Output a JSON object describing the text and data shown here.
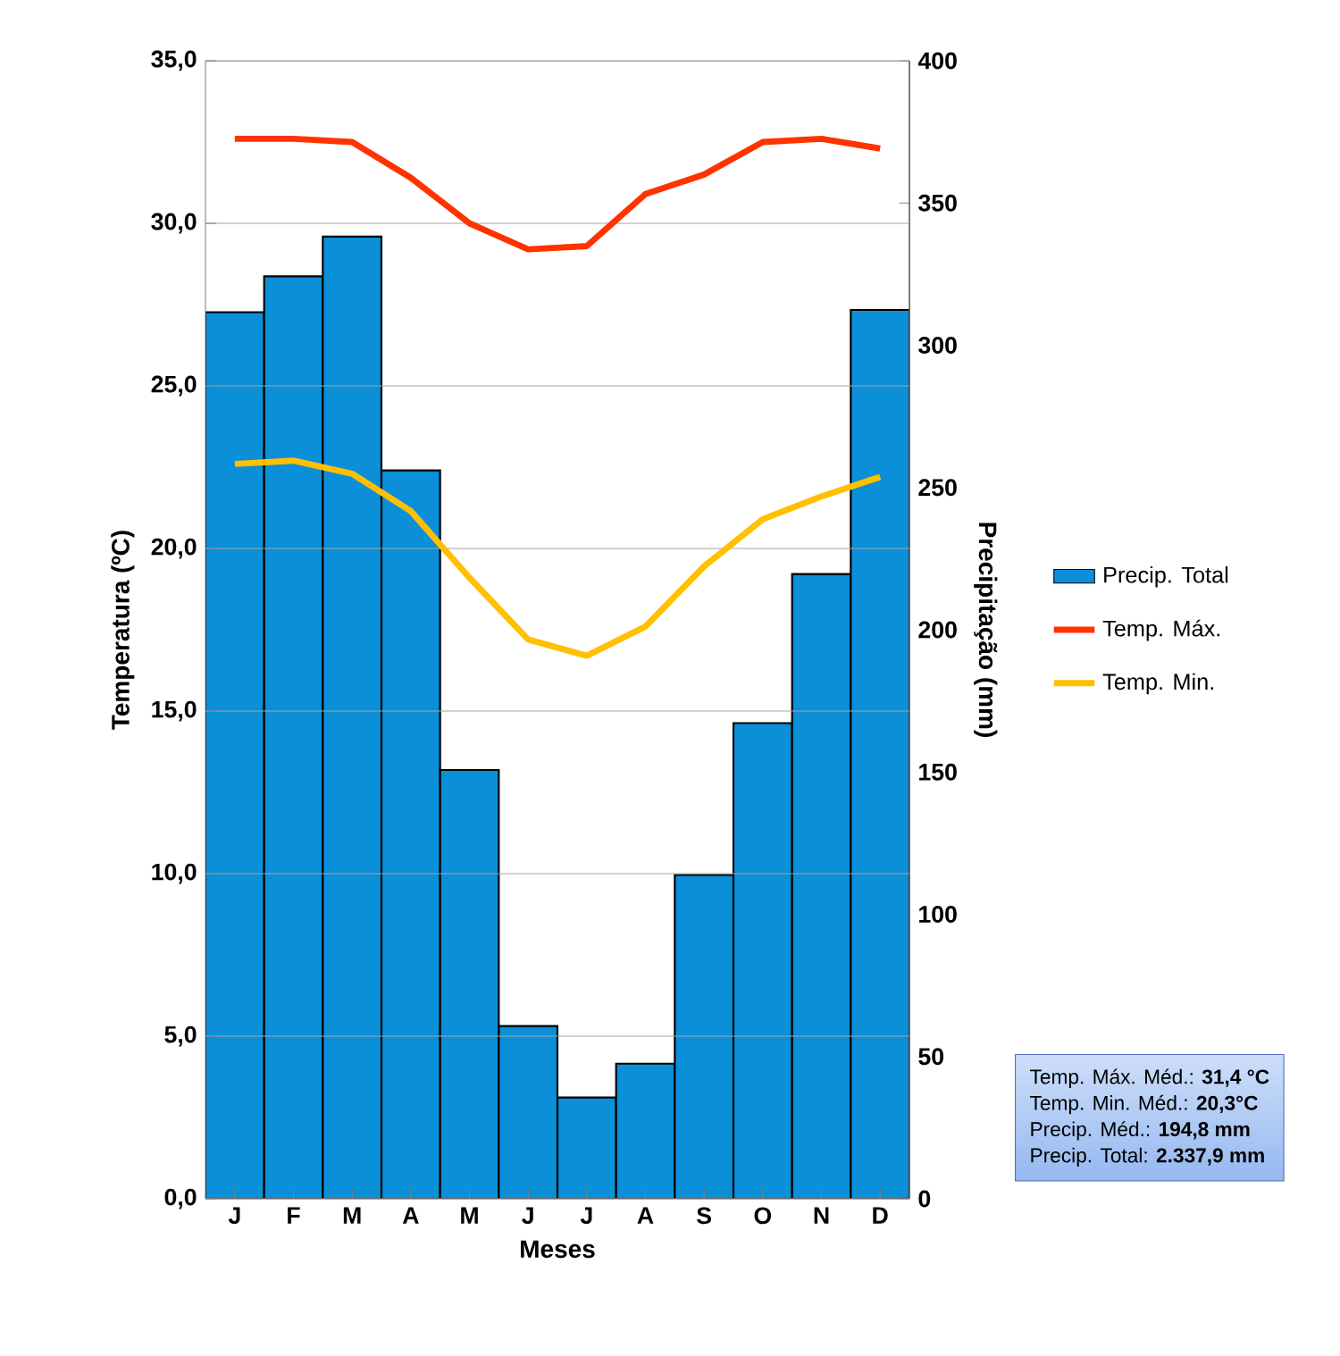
{
  "chart_data": {
    "type": "bar",
    "xlabel": "Meses",
    "ylabel": "Temperatura (ºC)",
    "y2label": "Precipitação (mm)",
    "categories": [
      "J",
      "F",
      "M",
      "A",
      "M",
      "J",
      "J",
      "A",
      "S",
      "O",
      "N",
      "D"
    ],
    "series": [
      {
        "name": "Precip. Total",
        "axis": "y2",
        "color": "#0a8fd8",
        "values": [
          311.6,
          324.2,
          338.2,
          256,
          150.7,
          60.7,
          35.6,
          47.5,
          113.8,
          167.2,
          219.6,
          312.4
        ]
      },
      {
        "name": "Temp. Máx.",
        "type": "line",
        "axis": "y",
        "color": "#ff3300",
        "values": [
          32.6,
          32.6,
          32.5,
          31.4,
          30.0,
          29.2,
          29.3,
          30.9,
          31.5,
          32.5,
          32.6,
          32.3
        ]
      },
      {
        "name": "Temp. Min.",
        "type": "line",
        "axis": "y",
        "color": "#ffc000",
        "values": [
          22.6,
          22.7,
          22.3,
          21.15,
          19.1,
          17.2,
          16.7,
          17.6,
          19.45,
          20.9,
          21.6,
          22.2
        ]
      }
    ],
    "ylim": [
      0,
      35
    ],
    "yticks": [
      {
        "value": 0,
        "label": "0,0"
      },
      {
        "value": 5,
        "label": "5,0"
      },
      {
        "value": 10,
        "label": "10,0"
      },
      {
        "value": 15,
        "label": "15,0"
      },
      {
        "value": 20,
        "label": "20,0"
      },
      {
        "value": 25,
        "label": "25,0"
      },
      {
        "value": 30,
        "label": "30,0"
      },
      {
        "value": 35,
        "label": "35,0"
      }
    ],
    "y2lim": [
      0,
      400
    ],
    "y2ticks": [
      0,
      50,
      100,
      150,
      200,
      250,
      300,
      350,
      400
    ],
    "grid": "y",
    "legend": "right",
    "annotations": [
      "Temp. Máx. Méd.: **31,4 °C**",
      "Temp. Min. Méd.: **20,3°C**",
      "Precip. Méd.: **194,8 mm**",
      "Precip. Total: **2.337,9 mm**"
    ]
  }
}
